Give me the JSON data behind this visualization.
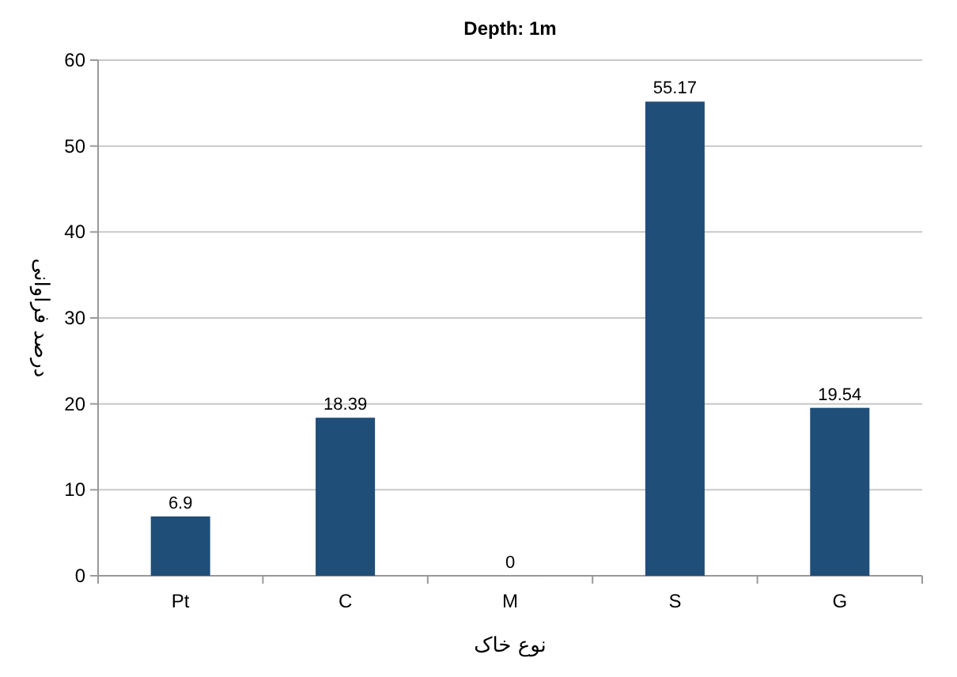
{
  "chart_data": {
    "type": "bar",
    "title": "Depth: 1m",
    "xlabel": "نوع خاک",
    "ylabel": "درصد فراوانی",
    "categories": [
      "Pt",
      "C",
      "M",
      "S",
      "G"
    ],
    "values": [
      6.9,
      18.39,
      0,
      55.17,
      19.54
    ],
    "color": "#1f4e79",
    "ylim": [
      0,
      60
    ],
    "yticks": [
      0,
      10,
      20,
      30,
      40,
      50,
      60
    ],
    "grid": "y",
    "data_labels": true
  }
}
